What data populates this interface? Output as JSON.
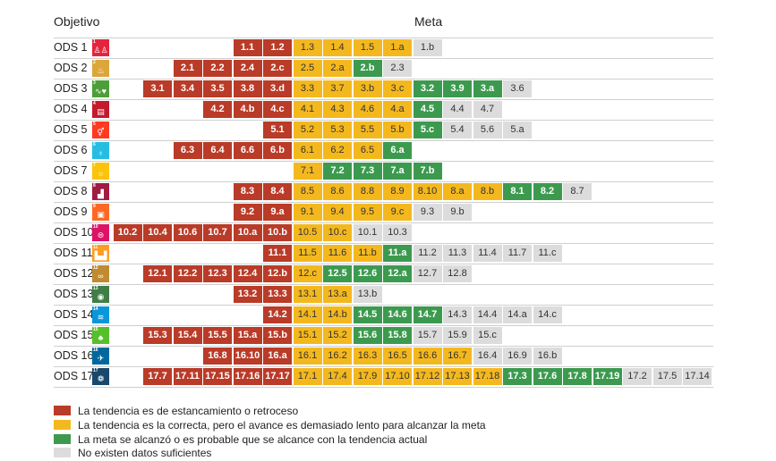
{
  "header": {
    "objective_label": "Objetivo",
    "target_label": "Meta"
  },
  "colors": {
    "red": "#b93b28",
    "yellow": "#f4b81f",
    "green": "#3c9a4f",
    "grey": "#dcdcdc"
  },
  "legend": [
    {
      "status": "red",
      "text": "La tendencia es de estancamiento o retroceso"
    },
    {
      "status": "yellow",
      "text": "La tendencia es la correcta, pero el avance es demasiado lento para alcanzar la meta"
    },
    {
      "status": "green",
      "text": "La meta se alcanzó o es probable que se alcance con la tendencia actual"
    },
    {
      "status": "grey",
      "text": "No existen datos suficientes"
    }
  ],
  "chart_data": {
    "type": "table",
    "title": "",
    "xlabel": "Meta",
    "ylabel": "Objetivo",
    "status_scale": {
      "red": -2,
      "yellow": -1,
      "green": 1,
      "grey": 0
    },
    "rows": [
      {
        "label": "ODS 1",
        "icon": {
          "number": "1",
          "color": "#e5243b",
          "name": "no-poverty-icon",
          "glyph": "♙♙"
        },
        "red": [
          "1.1",
          "1.2"
        ],
        "yellow": [
          "1.3",
          "1.4",
          "1.5",
          "1.a"
        ],
        "green": [],
        "grey": [
          "1.b"
        ]
      },
      {
        "label": "ODS 2",
        "icon": {
          "number": "2",
          "color": "#dda63a",
          "name": "zero-hunger-icon",
          "glyph": "♨"
        },
        "red": [
          "2.1",
          "2.2",
          "2.4",
          "2.c"
        ],
        "yellow": [
          "2.5",
          "2.a"
        ],
        "green": [
          "2.b"
        ],
        "grey": [
          "2.3"
        ]
      },
      {
        "label": "ODS 3",
        "icon": {
          "number": "3",
          "color": "#4c9f38",
          "name": "good-health-icon",
          "glyph": "∿♥"
        },
        "red": [
          "3.1",
          "3.4",
          "3.5",
          "3.8",
          "3.d"
        ],
        "yellow": [
          "3.3",
          "3.7",
          "3.b",
          "3.c"
        ],
        "green": [
          "3.2",
          "3.9",
          "3.a"
        ],
        "grey": [
          "3.6"
        ]
      },
      {
        "label": "ODS 4",
        "icon": {
          "number": "4",
          "color": "#c5192d",
          "name": "quality-education-icon",
          "glyph": "▤"
        },
        "red": [
          "4.2",
          "4.b",
          "4.c"
        ],
        "yellow": [
          "4.1",
          "4.3",
          "4.6",
          "4.a"
        ],
        "green": [
          "4.5"
        ],
        "grey": [
          "4.4",
          "4.7"
        ]
      },
      {
        "label": "ODS 5",
        "icon": {
          "number": "5",
          "color": "#ff3a21",
          "name": "gender-equality-icon",
          "glyph": "⚥"
        },
        "red": [
          "5.1"
        ],
        "yellow": [
          "5.2",
          "5.3",
          "5.5",
          "5.b"
        ],
        "green": [
          "5.c"
        ],
        "grey": [
          "5.4",
          "5.6",
          "5.a"
        ]
      },
      {
        "label": "ODS 6",
        "icon": {
          "number": "6",
          "color": "#26bde2",
          "name": "clean-water-icon",
          "glyph": "♁"
        },
        "red": [
          "6.3",
          "6.4",
          "6.6",
          "6.b"
        ],
        "yellow": [
          "6.1",
          "6.2",
          "6.5"
        ],
        "green": [
          "6.a"
        ],
        "grey": []
      },
      {
        "label": "ODS 7",
        "icon": {
          "number": "7",
          "color": "#fcc30b",
          "name": "clean-energy-icon",
          "glyph": "☼"
        },
        "red": [],
        "yellow": [
          "7.1"
        ],
        "green": [
          "7.2",
          "7.3",
          "7.a",
          "7.b"
        ],
        "grey": []
      },
      {
        "label": "ODS 8",
        "icon": {
          "number": "8",
          "color": "#a21942",
          "name": "decent-work-icon",
          "glyph": "▟"
        },
        "red": [
          "8.3",
          "8.4"
        ],
        "yellow": [
          "8.5",
          "8.6",
          "8.8",
          "8.9",
          "8.10",
          "8.a",
          "8.b"
        ],
        "green": [
          "8.1",
          "8.2"
        ],
        "grey": [
          "8.7"
        ]
      },
      {
        "label": "ODS 9",
        "icon": {
          "number": "9",
          "color": "#fd6925",
          "name": "industry-innovation-icon",
          "glyph": "▣"
        },
        "red": [
          "9.2",
          "9.a"
        ],
        "yellow": [
          "9.1",
          "9.4",
          "9.5",
          "9.c"
        ],
        "green": [],
        "grey": [
          "9.3",
          "9.b"
        ]
      },
      {
        "label": "ODS 10",
        "icon": {
          "number": "10",
          "color": "#dd1367",
          "name": "reduced-inequalities-icon",
          "glyph": "⊜"
        },
        "red": [
          "10.2",
          "10.4",
          "10.6",
          "10.7",
          "10.a",
          "10.b"
        ],
        "yellow": [
          "10.5",
          "10.c"
        ],
        "green": [],
        "grey": [
          "10.1",
          "10.3"
        ]
      },
      {
        "label": "ODS 11",
        "icon": {
          "number": "11",
          "color": "#fd9d24",
          "name": "sustainable-cities-icon",
          "glyph": "▙▟"
        },
        "red": [
          "11.1"
        ],
        "yellow": [
          "11.5",
          "11.6",
          "11.b"
        ],
        "green": [
          "11.a"
        ],
        "grey": [
          "11.2",
          "11.3",
          "11.4",
          "11.7",
          "11.c"
        ]
      },
      {
        "label": "ODS 12",
        "icon": {
          "number": "12",
          "color": "#bf8b2e",
          "name": "responsible-consumption-icon",
          "glyph": "∞"
        },
        "red": [
          "12.1",
          "12.2",
          "12.3",
          "12.4",
          "12.b"
        ],
        "yellow": [
          "12.c"
        ],
        "green": [
          "12.5",
          "12.6",
          "12.a"
        ],
        "grey": [
          "12.7",
          "12.8"
        ]
      },
      {
        "label": "ODS 13",
        "icon": {
          "number": "13",
          "color": "#3f7e44",
          "name": "climate-action-icon",
          "glyph": "◉"
        },
        "red": [
          "13.2",
          "13.3"
        ],
        "yellow": [
          "13.1",
          "13.a"
        ],
        "green": [],
        "grey": [
          "13.b"
        ]
      },
      {
        "label": "ODS 14",
        "icon": {
          "number": "14",
          "color": "#0a97d9",
          "name": "life-below-water-icon",
          "glyph": "≋"
        },
        "red": [
          "14.2"
        ],
        "yellow": [
          "14.1",
          "14.b"
        ],
        "green": [
          "14.5",
          "14.6",
          "14.7"
        ],
        "grey": [
          "14.3",
          "14.4",
          "14.a",
          "14.c"
        ]
      },
      {
        "label": "ODS 15",
        "icon": {
          "number": "15",
          "color": "#56c02b",
          "name": "life-on-land-icon",
          "glyph": "♣"
        },
        "red": [
          "15.3",
          "15.4",
          "15.5",
          "15.a",
          "15.b"
        ],
        "yellow": [
          "15.1",
          "15.2"
        ],
        "green": [
          "15.6",
          "15.8"
        ],
        "grey": [
          "15.7",
          "15.9",
          "15.c"
        ]
      },
      {
        "label": "ODS 16",
        "icon": {
          "number": "16",
          "color": "#00689d",
          "name": "peace-justice-icon",
          "glyph": "✈"
        },
        "red": [
          "16.8",
          "16.10",
          "16.a"
        ],
        "yellow": [
          "16.1",
          "16.2",
          "16.3",
          "16.5",
          "16.6",
          "16.7"
        ],
        "green": [],
        "grey": [
          "16.4",
          "16.9",
          "16.b"
        ]
      },
      {
        "label": "ODS 17",
        "icon": {
          "number": "17",
          "color": "#19486a",
          "name": "partnerships-icon",
          "glyph": "❁"
        },
        "red": [
          "17.7",
          "17.11",
          "17.15",
          "17.16",
          "17.17"
        ],
        "yellow": [
          "17.1",
          "17.4",
          "17.9",
          "17.10",
          "17.12",
          "17.13",
          "17.18"
        ],
        "green": [
          "17.3",
          "17.6",
          "17.8",
          "17.19"
        ],
        "grey": [
          "17.2",
          "17.5",
          "17.14"
        ]
      }
    ]
  }
}
